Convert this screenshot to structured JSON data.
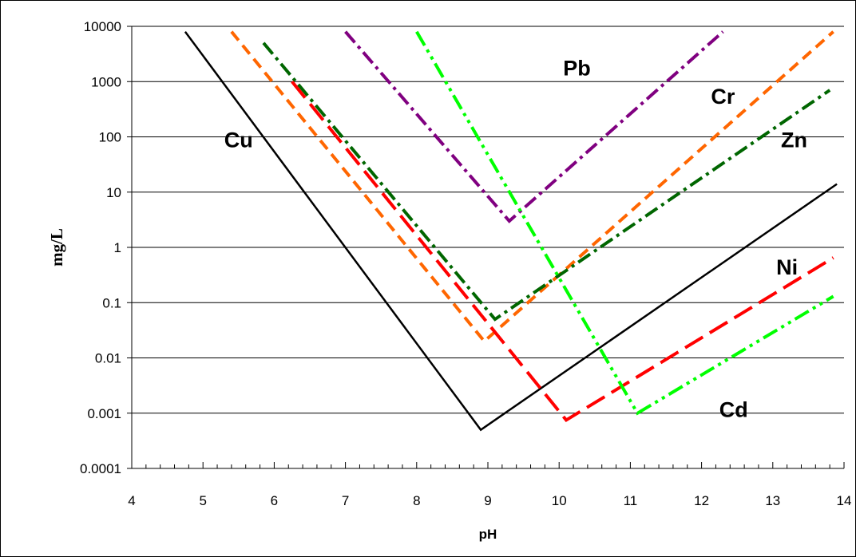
{
  "chart_data": {
    "type": "line",
    "xlabel": "pH",
    "ylabel": "mg/L",
    "xlim": [
      4,
      14
    ],
    "ylim": [
      0.0001,
      10000
    ],
    "yscale": "log",
    "x_ticks": [
      "4",
      "5",
      "6",
      "7",
      "8",
      "9",
      "10",
      "11",
      "12",
      "13",
      "14"
    ],
    "y_ticks": [
      "0.0001",
      "0.001",
      "0.01",
      "0.1",
      "1",
      "10",
      "100",
      "1000",
      "10000"
    ],
    "grid": "horizontal",
    "legend": "none",
    "series": [
      {
        "name": "Cu",
        "color": "#000000",
        "dash": "solid",
        "x": [
          4.75,
          8.9,
          13.9
        ],
        "y": [
          8000,
          0.0005,
          14
        ]
      },
      {
        "name": "Cr",
        "color": "#ff6600",
        "dash": "dash",
        "x": [
          5.4,
          8.95,
          13.85
        ],
        "y": [
          8000,
          0.02,
          8000
        ]
      },
      {
        "name": "Zn",
        "color": "#006600",
        "dash": "dashdot",
        "x": [
          5.85,
          9.1,
          13.8
        ],
        "y": [
          5000,
          0.05,
          700
        ]
      },
      {
        "name": "Ni",
        "color": "#ff0000",
        "dash": "longdash",
        "x": [
          6.25,
          10.1,
          13.85
        ],
        "y": [
          1000,
          0.00075,
          0.65
        ]
      },
      {
        "name": "Pb",
        "color": "#800080",
        "dash": "dashdot",
        "x": [
          7.0,
          9.3,
          12.3
        ],
        "y": [
          8000,
          3,
          8000
        ]
      },
      {
        "name": "Cd",
        "color": "#00ff00",
        "dash": "dashdotdot",
        "x": [
          8.0,
          11.1,
          13.85
        ],
        "y": [
          8000,
          0.001,
          0.13
        ]
      }
    ],
    "labels": [
      {
        "text": "Cu",
        "x": 5.5,
        "y": 90
      },
      {
        "text": "Cr",
        "x": 12.3,
        "y": 550
      },
      {
        "text": "Zn",
        "x": 13.3,
        "y": 90
      },
      {
        "text": "Ni",
        "x": 13.2,
        "y": 0.45
      },
      {
        "text": "Pb",
        "x": 10.25,
        "y": 1800
      },
      {
        "text": "Cd",
        "x": 12.45,
        "y": 0.0012
      }
    ]
  }
}
